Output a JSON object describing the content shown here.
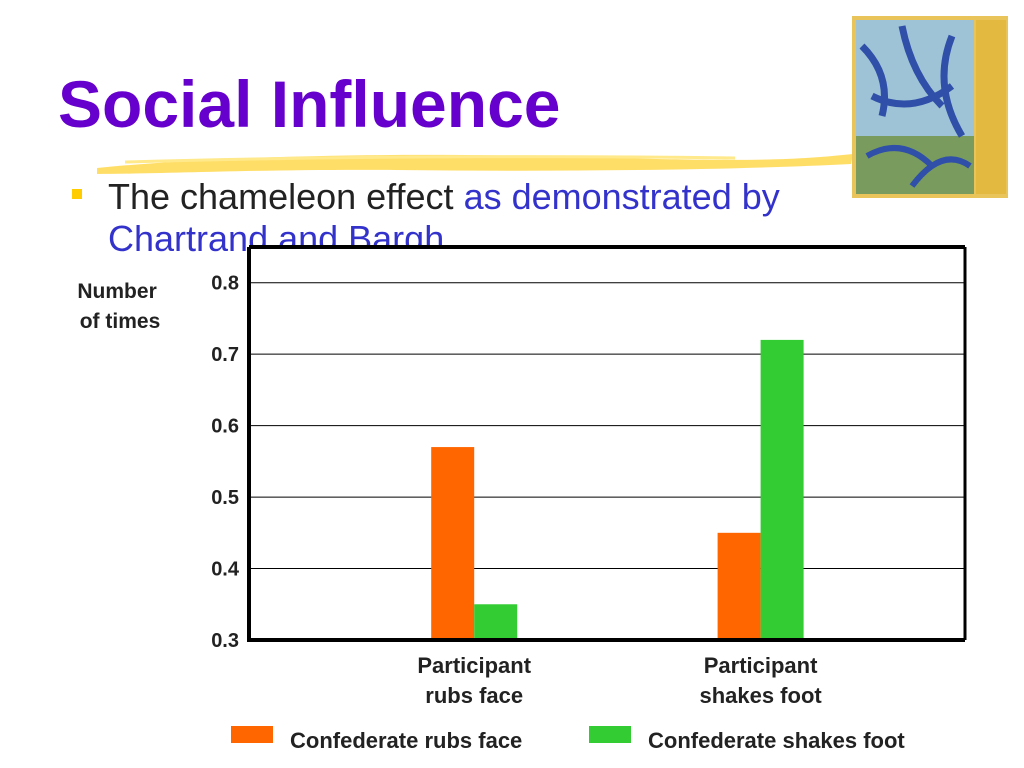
{
  "slide": {
    "title": "Social Influence",
    "bullet_main": "The chameleon effect ",
    "bullet_accent": "as demonstrated by Chartrand and Bargh."
  },
  "colors": {
    "title": "#6600cc",
    "accent_text": "#3333cc",
    "bullet": "#ffcc00",
    "highlight_stroke": "#ffd84d",
    "series_1": "#ff6600",
    "series_2": "#33cc33"
  },
  "icons": {
    "bullet": "square-bullet-icon",
    "cover": "book-cover-image"
  },
  "chart_data": {
    "type": "bar",
    "title": "",
    "ylabel": "Number of times",
    "ylabel_lines": [
      "Number",
      "of times"
    ],
    "xlabel": "",
    "categories": [
      "Participant rubs face",
      "Participant shakes foot"
    ],
    "category_lines": [
      [
        "Participant",
        "rubs face"
      ],
      [
        "Participant",
        "shakes foot"
      ]
    ],
    "series": [
      {
        "name": "Confederate rubs face",
        "values": [
          0.57,
          0.45
        ]
      },
      {
        "name": "Confederate shakes foot",
        "values": [
          0.35,
          0.72
        ]
      }
    ],
    "ylim": [
      0.3,
      0.85
    ],
    "yticks": [
      "0.3",
      "0.4",
      "0.5",
      "0.6",
      "0.7",
      "0.8"
    ],
    "grid": true,
    "legend": "bottom"
  }
}
